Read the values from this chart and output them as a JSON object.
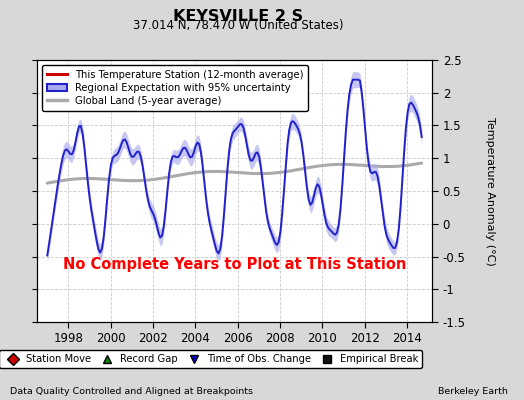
{
  "title": "KEYSVILLE 2 S",
  "subtitle": "37.014 N, 78.470 W (United States)",
  "ylabel": "Temperature Anomaly (°C)",
  "footer_left": "Data Quality Controlled and Aligned at Breakpoints",
  "footer_right": "Berkeley Earth",
  "xlim": [
    1996.5,
    2015.2
  ],
  "ylim": [
    -1.5,
    2.5
  ],
  "yticks": [
    -1.5,
    -1.0,
    -0.5,
    0.0,
    0.5,
    1.0,
    1.5,
    2.0,
    2.5
  ],
  "xticks": [
    1998,
    2000,
    2002,
    2004,
    2006,
    2008,
    2010,
    2012,
    2014
  ],
  "no_data_text": "No Complete Years to Plot at This Station",
  "background_color": "#d8d8d8",
  "plot_bg_color": "#ffffff",
  "regional_color": "#2222cc",
  "regional_fill": "#aaaaee",
  "global_color": "#aaaaaa",
  "red_line_color": "#cc0000",
  "legend1_entries": [
    {
      "label": "This Temperature Station (12-month average)"
    },
    {
      "label": "Regional Expectation with 95% uncertainty"
    },
    {
      "label": "Global Land (5-year average)"
    }
  ],
  "legend2_entries": [
    {
      "label": "Station Move",
      "marker": "D",
      "color": "#cc0000"
    },
    {
      "label": "Record Gap",
      "marker": "^",
      "color": "#008800"
    },
    {
      "label": "Time of Obs. Change",
      "marker": "v",
      "color": "#0000cc"
    },
    {
      "label": "Empirical Break",
      "marker": "s",
      "color": "#111111"
    }
  ]
}
